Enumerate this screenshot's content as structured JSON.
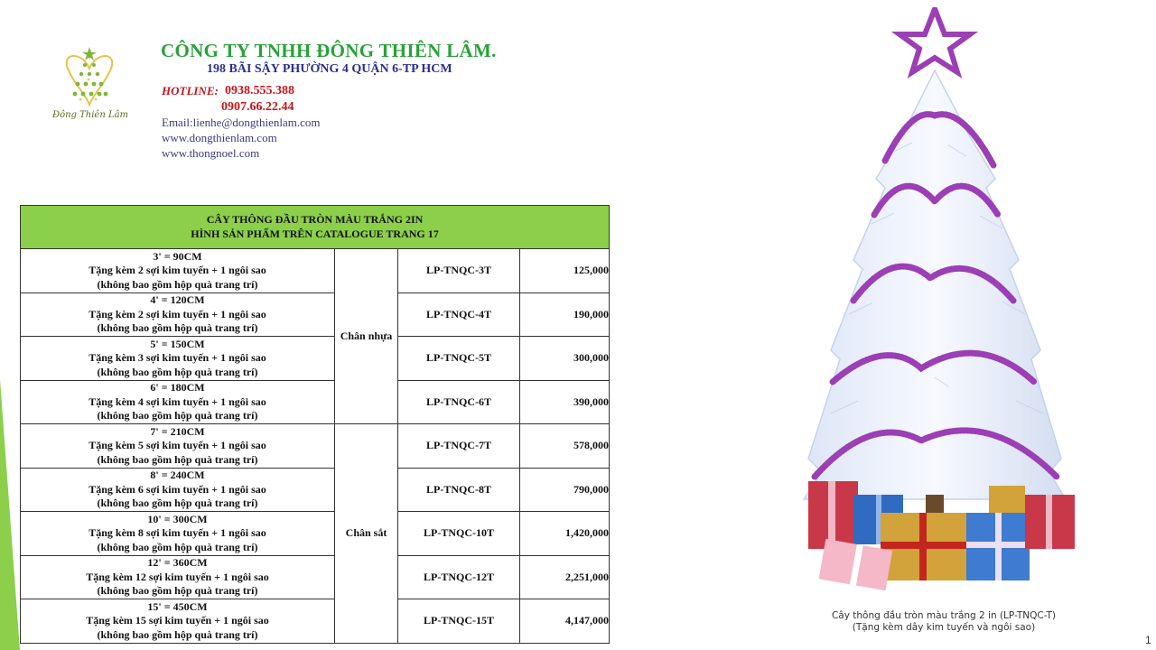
{
  "header": {
    "logo_name": "Đông Thiên Lâm",
    "company": "CÔNG TY TNHH ĐÔNG THIÊN LÂM.",
    "address": "198 BÃI SẬY PHƯỜNG 4 QUẬN 6-TP HCM",
    "hotline_label": "HOTLINE:",
    "hotlines": [
      "0938.555.388",
      "0907.66.22.44"
    ],
    "email": "Email:lienhe@dongthienlam.com",
    "websites": [
      "www.dongthienlam.com",
      "www.thongnoel.com"
    ]
  },
  "table": {
    "title_1": "CÂY THÔNG ĐẦU TRÒN MÀU TRẮNG 2IN",
    "title_2": "HÌNH SẢN PHẨM TRÊN CATALOGUE TRANG 17",
    "base_plastic": "Chân nhựa",
    "base_iron": "Chân sắt",
    "rows": [
      {
        "size": "3' = 90CM",
        "gift": "Tặng kèm 2 sợi kim tuyến  + 1 ngôi sao",
        "note": "(không bao gồm hộp quà trang trí)",
        "code": "LP-TNQC-3T",
        "price": "125,000"
      },
      {
        "size": "4' = 120CM",
        "gift": "Tặng kèm 2 sợi kim tuyến  + 1 ngôi sao",
        "note": "(không bao gồm hộp quà trang trí)",
        "code": "LP-TNQC-4T",
        "price": "190,000"
      },
      {
        "size": "5'  = 150CM",
        "gift": "Tặng kèm 3 sợi kim tuyến  + 1 ngôi sao",
        "note": "(không bao gồm hộp quà trang trí)",
        "code": "LP-TNQC-5T",
        "price": "300,000"
      },
      {
        "size": "6' = 180CM",
        "gift": "Tặng kèm 4 sợi kim tuyến  + 1 ngôi sao",
        "note": "(không bao gồm hộp quà trang trí)",
        "code": "LP-TNQC-6T",
        "price": "390,000"
      },
      {
        "size": "7' = 210CM",
        "gift": "Tặng kèm 5 sợi kim tuyến  + 1 ngôi sao",
        "note": "(không bao gồm hộp quà trang trí)",
        "code": "LP-TNQC-7T",
        "price": "578,000"
      },
      {
        "size": "8' = 240CM",
        "gift": "Tặng kèm 6 sợi kim tuyến  + 1 ngôi sao",
        "note": "(không bao gồm hộp quà trang trí)",
        "code": "LP-TNQC-8T",
        "price": "790,000"
      },
      {
        "size": "10' = 300CM",
        "gift": "Tặng kèm 8 sợi kim tuyến  + 1 ngôi sao",
        "note": "(không bao gồm hộp quà trang trí)",
        "code": "LP-TNQC-10T",
        "price": "1,420,000"
      },
      {
        "size": "12' = 360CM",
        "gift": "Tặng kèm 12 sợi kim tuyến  + 1 ngôi sao",
        "note": "(không bao gồm hộp quà trang trí)",
        "code": "LP-TNQC-12T",
        "price": "2,251,000"
      },
      {
        "size": "15' = 450CM",
        "gift": "Tặng kèm 15 sợi kim tuyến  + 1 ngôi sao",
        "note": "(không bao gồm hộp quà trang trí)",
        "code": "LP-TNQC-15T",
        "price": "4,147,000"
      }
    ]
  },
  "product_image": {
    "caption_1": "Cây thông đầu tròn màu trắng 2 in (LP-TNQC-T)",
    "caption_2": "(Tặng kèm dây kim tuyến và ngôi sao)"
  },
  "page_mark": "1",
  "colors": {
    "company_green": "#2aa13a",
    "address_blue": "#2b2e8c",
    "hotline_red": "#c4161c",
    "table_header_green": "#8ccf4a",
    "tinsel_purple": "#9b3fb5"
  }
}
